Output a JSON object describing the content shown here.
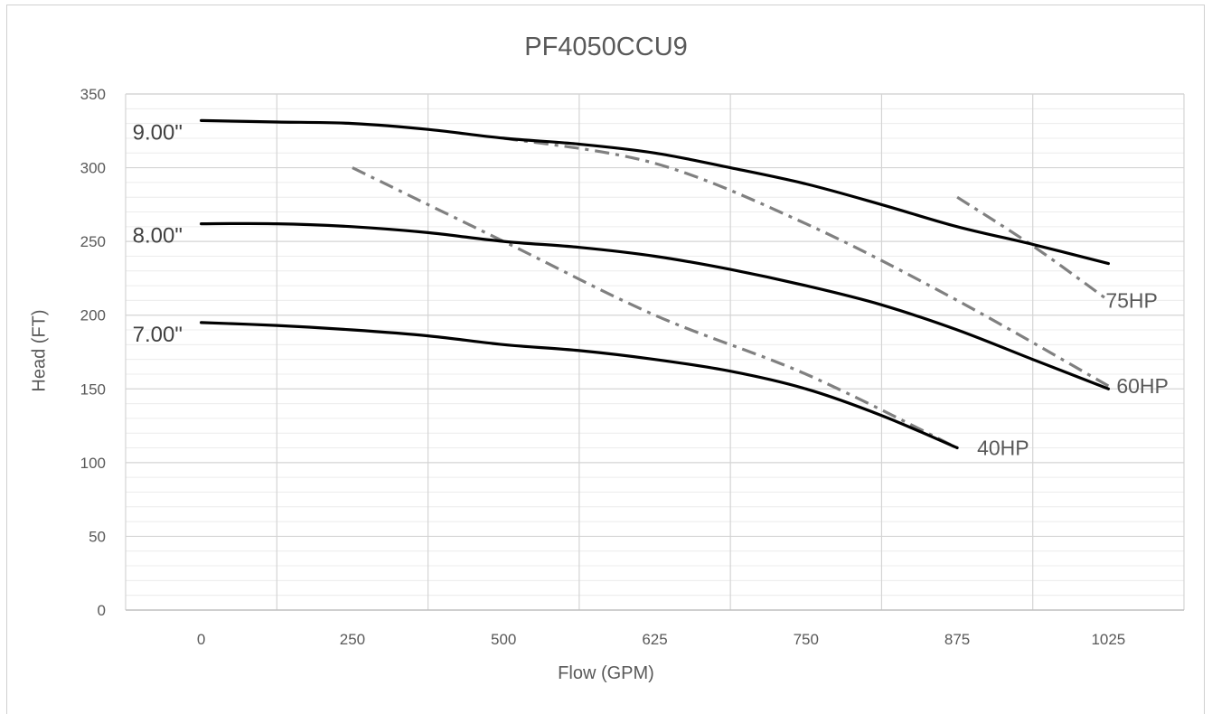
{
  "chart_data": {
    "type": "line",
    "title": "PF4050CCU9",
    "xlabel": "Flow (GPM)",
    "ylabel": "Head (FT)",
    "x_tick_labels": [
      "0",
      "250",
      "500",
      "625",
      "750",
      "875",
      "1025"
    ],
    "y_ticks": [
      0,
      50,
      100,
      150,
      200,
      250,
      300,
      350
    ],
    "ylim": [
      0,
      350
    ],
    "xlim": [
      -0.5,
      6.5
    ],
    "x_note": "x values are positions on the categorical flow axis (0 = '0', 1 = '250', ... 6 = '1025')",
    "grid": true,
    "impeller_series": [
      {
        "name": "9.00\"",
        "color": "#000000",
        "points": [
          [
            0,
            332
          ],
          [
            0.5,
            331
          ],
          [
            1,
            330
          ],
          [
            1.5,
            326
          ],
          [
            2,
            320
          ],
          [
            2.5,
            316
          ],
          [
            3,
            310
          ],
          [
            3.5,
            300
          ],
          [
            4,
            289
          ],
          [
            4.5,
            275
          ],
          [
            5,
            260
          ],
          [
            5.5,
            248
          ],
          [
            6,
            235
          ]
        ]
      },
      {
        "name": "8.00\"",
        "color": "#000000",
        "points": [
          [
            0,
            262
          ],
          [
            0.5,
            262
          ],
          [
            1,
            260
          ],
          [
            1.5,
            256
          ],
          [
            2,
            250
          ],
          [
            2.5,
            246
          ],
          [
            3,
            240
          ],
          [
            3.5,
            231
          ],
          [
            4,
            220
          ],
          [
            4.5,
            207
          ],
          [
            5,
            190
          ],
          [
            5.5,
            170
          ],
          [
            6,
            150
          ]
        ]
      },
      {
        "name": "7.00\"",
        "color": "#000000",
        "points": [
          [
            0,
            195
          ],
          [
            0.5,
            193
          ],
          [
            1,
            190
          ],
          [
            1.5,
            186
          ],
          [
            2,
            180
          ],
          [
            2.5,
            176
          ],
          [
            3,
            170
          ],
          [
            3.5,
            162
          ],
          [
            4,
            150
          ],
          [
            4.5,
            132
          ],
          [
            5,
            110
          ]
        ]
      }
    ],
    "hp_series": [
      {
        "name": "40HP",
        "color": "#808080",
        "points": [
          [
            1,
            300
          ],
          [
            2,
            250
          ],
          [
            3,
            200
          ],
          [
            4,
            160
          ],
          [
            5,
            110
          ]
        ]
      },
      {
        "name": "60HP",
        "color": "#808080",
        "points": [
          [
            2,
            320
          ],
          [
            3,
            303
          ],
          [
            4,
            262
          ],
          [
            5,
            210
          ],
          [
            6,
            152
          ]
        ]
      },
      {
        "name": "75HP",
        "color": "#808080",
        "points": [
          [
            5,
            280
          ],
          [
            5.5,
            247
          ],
          [
            6,
            210
          ]
        ]
      }
    ]
  }
}
